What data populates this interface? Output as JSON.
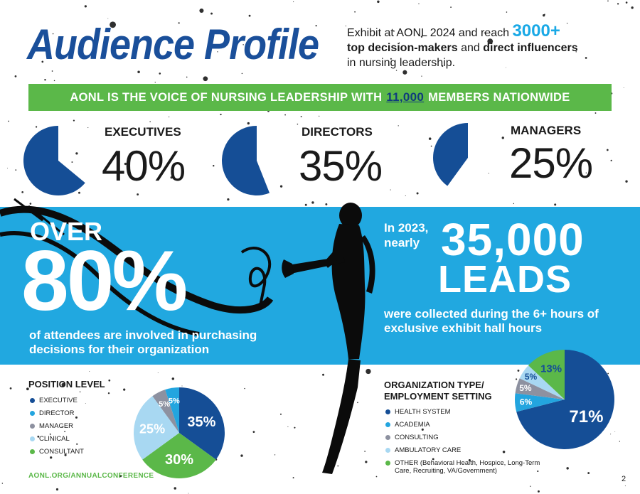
{
  "header": {
    "title": "Audience Profile",
    "intro_line1": "Exhibit at AONL 2024 and reach",
    "intro_big": "3000+",
    "intro_bold1": "top decision-makers",
    "intro_and": "and",
    "intro_bold2": "direct influencers",
    "intro_line3": "in nursing leadership."
  },
  "banner": {
    "text_before": "AONL IS THE VOICE OF NURSING LEADERSHIP WITH",
    "number": "11,000",
    "text_after": "MEMBERS NATIONWIDE"
  },
  "top_stats": [
    {
      "label": "EXECUTIVES",
      "percent_text": "40%",
      "value": 40
    },
    {
      "label": "DIRECTORS",
      "percent_text": "35%",
      "value": 35
    },
    {
      "label": "MANAGERS",
      "percent_text": "25%",
      "value": 25
    }
  ],
  "purchasing": {
    "over": "OVER",
    "big": "80%",
    "caption": "of attendees are involved in purchasing decisions for their organization"
  },
  "leads": {
    "prefix": "In 2023, nearly",
    "number": "35,000",
    "word": "LEADS",
    "caption": "were collected during the 6+ hours of exclusive exhibit hall hours"
  },
  "chart_data": [
    {
      "type": "pie",
      "title": "POSITION LEVEL",
      "categories": [
        "EXECUTIVE",
        "DIRECTOR",
        "MANAGER",
        "CLINICAL",
        "CONSULTANT"
      ],
      "values": [
        35,
        5,
        5,
        25,
        30
      ],
      "labels": [
        "35%",
        "5%",
        "5%",
        "25%",
        "30%"
      ],
      "colors": [
        "#154e96",
        "#23a5df",
        "#8d91a0",
        "#a8d8f2",
        "#5bb849"
      ]
    },
    {
      "type": "pie",
      "title": "ORGANIZATION TYPE/ EMPLOYMENT SETTING",
      "categories": [
        "HEALTH SYSTEM",
        "ACADEMIA",
        "CONSULTING",
        "AMBULATORY CARE",
        "OTHER (Behavioral Health, Hospice, Long-Term Care, Recruiting, VA/Government)"
      ],
      "values": [
        71,
        6,
        5,
        5,
        13
      ],
      "labels": [
        "71%",
        "6%",
        "5%",
        "5%",
        "13%"
      ],
      "colors": [
        "#154e96",
        "#23a5df",
        "#8d91a0",
        "#a8d8f2",
        "#5bb849"
      ]
    }
  ],
  "position_level": {
    "title": "POSITION LEVEL",
    "legend": [
      {
        "label": "EXECUTIVE",
        "color": "#154e96"
      },
      {
        "label": "DIRECTOR",
        "color": "#23a5df"
      },
      {
        "label": "MANAGER",
        "color": "#8d91a0"
      },
      {
        "label": "CLINICAL",
        "color": "#a8d8f2"
      },
      {
        "label": "CONSULTANT",
        "color": "#5bb849"
      }
    ]
  },
  "org_type": {
    "title_line1": "ORGANIZATION TYPE/",
    "title_line2": "EMPLOYMENT SETTING",
    "legend": [
      {
        "label": "HEALTH SYSTEM",
        "color": "#154e96"
      },
      {
        "label": "ACADEMIA",
        "color": "#23a5df"
      },
      {
        "label": "CONSULTING",
        "color": "#8d91a0"
      },
      {
        "label": "AMBULATORY CARE",
        "color": "#a8d8f2"
      },
      {
        "label": "OTHER (Behavioral Health, Hospice, Long-Term Care, Recruiting, VA/Government)",
        "color": "#5bb849"
      }
    ]
  },
  "footer": {
    "url": "AONL.ORG/ANNUALCONFERENCE",
    "page_number": "2"
  },
  "colors": {
    "navy": "#154e96",
    "title_blue": "#1a4f9a",
    "band_blue": "#21a8e0",
    "accent_blue": "#1aa9e6",
    "green": "#5bb849"
  },
  "icons": [
    "trumpet-player-silhouette",
    "music-clef-icon",
    "ink-splatter-decoration"
  ]
}
